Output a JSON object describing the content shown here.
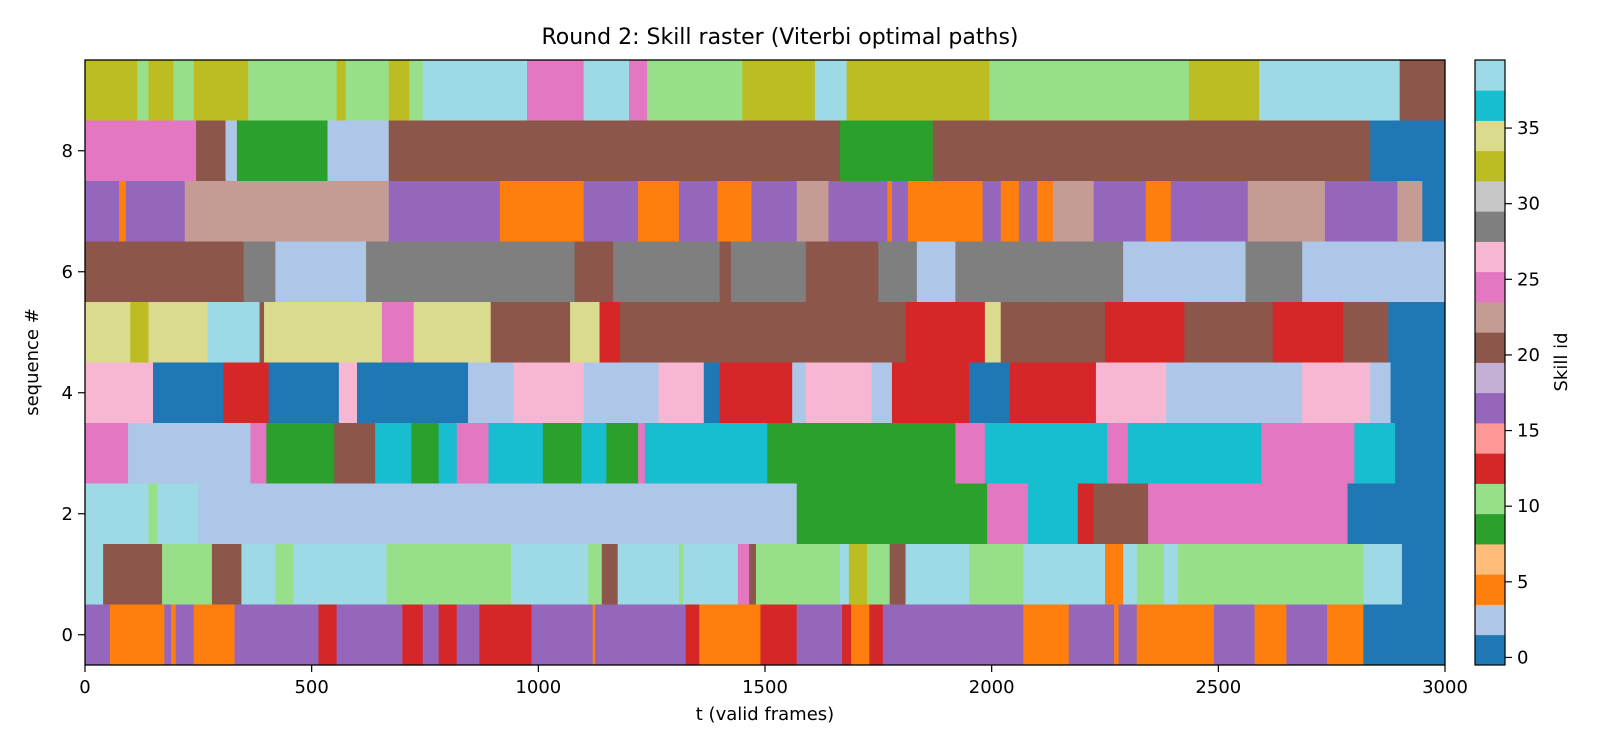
{
  "chart_data": {
    "type": "heatmap",
    "title": "Round 2: Skill raster (Viterbi optimal paths)",
    "xlabel": "t (valid frames)",
    "ylabel": "sequence #",
    "xlim": [
      0,
      3000
    ],
    "ylim": [
      -0.5,
      9.5
    ],
    "x_ticks": [
      0,
      500,
      1000,
      1500,
      2000,
      2500,
      3000
    ],
    "y_ticks": [
      0,
      2,
      4,
      6,
      8
    ],
    "grid": false,
    "colorbar": {
      "label": "Skill id",
      "range": [
        0,
        39
      ],
      "ticks": [
        0,
        5,
        10,
        15,
        20,
        25,
        30,
        35
      ],
      "palette": [
        "#1f77b4",
        "#aec7e8",
        "#ff7f0e",
        "#ffbb78",
        "#2ca02c",
        "#98df8a",
        "#d62728",
        "#ff9896",
        "#9467bd",
        "#c5b0d5",
        "#8c564b",
        "#c49c94",
        "#e377c2",
        "#f7b6d2",
        "#7f7f7f",
        "#c7c7c7",
        "#bcbd22",
        "#dbdb8d",
        "#17becf",
        "#9edae5"
      ]
    },
    "sequences": [
      {
        "row": 0,
        "segments": [
          [
            0,
            55,
            16
          ],
          [
            55,
            75,
            4
          ],
          [
            75,
            175,
            4
          ],
          [
            175,
            190,
            16
          ],
          [
            190,
            200,
            4
          ],
          [
            200,
            240,
            16
          ],
          [
            240,
            330,
            4
          ],
          [
            330,
            515,
            16
          ],
          [
            515,
            555,
            12
          ],
          [
            555,
            700,
            16
          ],
          [
            700,
            745,
            12
          ],
          [
            745,
            780,
            16
          ],
          [
            780,
            820,
            12
          ],
          [
            820,
            870,
            16
          ],
          [
            870,
            985,
            12
          ],
          [
            985,
            1120,
            16
          ],
          [
            1120,
            1125,
            4
          ],
          [
            1125,
            1325,
            16
          ],
          [
            1325,
            1355,
            12
          ],
          [
            1355,
            1490,
            4
          ],
          [
            1490,
            1570,
            12
          ],
          [
            1570,
            1670,
            16
          ],
          [
            1670,
            1690,
            12
          ],
          [
            1690,
            1730,
            4
          ],
          [
            1730,
            1760,
            12
          ],
          [
            1760,
            2070,
            16
          ],
          [
            2070,
            2170,
            4
          ],
          [
            2170,
            2270,
            16
          ],
          [
            2270,
            2280,
            4
          ],
          [
            2280,
            2320,
            16
          ],
          [
            2320,
            2490,
            4
          ],
          [
            2490,
            2580,
            16
          ],
          [
            2580,
            2650,
            4
          ],
          [
            2650,
            2740,
            16
          ],
          [
            2740,
            2820,
            4
          ],
          [
            2820,
            3000,
            0
          ]
        ]
      },
      {
        "row": 1,
        "segments": [
          [
            0,
            40,
            38
          ],
          [
            40,
            170,
            20
          ],
          [
            170,
            280,
            10
          ],
          [
            280,
            345,
            20
          ],
          [
            345,
            420,
            38
          ],
          [
            420,
            460,
            10
          ],
          [
            460,
            665,
            38
          ],
          [
            665,
            880,
            10
          ],
          [
            880,
            940,
            10
          ],
          [
            940,
            965,
            38
          ],
          [
            965,
            1110,
            38
          ],
          [
            1110,
            1140,
            10
          ],
          [
            1140,
            1175,
            20
          ],
          [
            1175,
            1310,
            38
          ],
          [
            1310,
            1320,
            10
          ],
          [
            1320,
            1440,
            38
          ],
          [
            1440,
            1465,
            24
          ],
          [
            1465,
            1480,
            20
          ],
          [
            1480,
            1665,
            10
          ],
          [
            1665,
            1685,
            38
          ],
          [
            1685,
            1725,
            32
          ],
          [
            1725,
            1775,
            10
          ],
          [
            1775,
            1810,
            20
          ],
          [
            1810,
            1950,
            38
          ],
          [
            1950,
            2070,
            10
          ],
          [
            2070,
            2250,
            38
          ],
          [
            2250,
            2290,
            4
          ],
          [
            2290,
            2320,
            38
          ],
          [
            2320,
            2380,
            10
          ],
          [
            2380,
            2410,
            38
          ],
          [
            2410,
            2820,
            10
          ],
          [
            2820,
            2905,
            38
          ],
          [
            2905,
            3000,
            0
          ]
        ]
      },
      {
        "row": 2,
        "segments": [
          [
            0,
            140,
            38
          ],
          [
            140,
            160,
            10
          ],
          [
            160,
            250,
            38
          ],
          [
            250,
            1570,
            2
          ],
          [
            1570,
            1990,
            8
          ],
          [
            1990,
            2080,
            24
          ],
          [
            2080,
            2190,
            36
          ],
          [
            2190,
            2225,
            12
          ],
          [
            2225,
            2345,
            20
          ],
          [
            2345,
            2785,
            24
          ],
          [
            2785,
            3000,
            0
          ]
        ]
      },
      {
        "row": 3,
        "segments": [
          [
            0,
            95,
            24
          ],
          [
            95,
            365,
            2
          ],
          [
            365,
            400,
            24
          ],
          [
            400,
            550,
            8
          ],
          [
            550,
            640,
            20
          ],
          [
            640,
            720,
            36
          ],
          [
            720,
            780,
            8
          ],
          [
            780,
            820,
            36
          ],
          [
            820,
            890,
            24
          ],
          [
            890,
            1010,
            36
          ],
          [
            1010,
            1095,
            8
          ],
          [
            1095,
            1150,
            36
          ],
          [
            1150,
            1220,
            8
          ],
          [
            1220,
            1235,
            24
          ],
          [
            1235,
            1505,
            36
          ],
          [
            1505,
            1655,
            8
          ],
          [
            1655,
            1815,
            8
          ],
          [
            1815,
            1920,
            8
          ],
          [
            1920,
            1985,
            24
          ],
          [
            1985,
            2255,
            36
          ],
          [
            2255,
            2300,
            24
          ],
          [
            2300,
            2595,
            36
          ],
          [
            2595,
            2800,
            24
          ],
          [
            2800,
            2890,
            36
          ],
          [
            2890,
            3000,
            0
          ]
        ]
      },
      {
        "row": 4,
        "segments": [
          [
            0,
            150,
            26
          ],
          [
            150,
            305,
            0
          ],
          [
            305,
            405,
            12
          ],
          [
            405,
            560,
            0
          ],
          [
            560,
            600,
            26
          ],
          [
            600,
            845,
            0
          ],
          [
            845,
            945,
            2
          ],
          [
            945,
            1100,
            26
          ],
          [
            1100,
            1265,
            2
          ],
          [
            1265,
            1365,
            26
          ],
          [
            1365,
            1400,
            0
          ],
          [
            1400,
            1560,
            12
          ],
          [
            1560,
            1590,
            2
          ],
          [
            1590,
            1735,
            26
          ],
          [
            1735,
            1780,
            2
          ],
          [
            1780,
            1950,
            12
          ],
          [
            1950,
            2040,
            0
          ],
          [
            2040,
            2155,
            12
          ],
          [
            2155,
            2230,
            12
          ],
          [
            2230,
            2385,
            26
          ],
          [
            2385,
            2685,
            2
          ],
          [
            2685,
            2835,
            26
          ],
          [
            2835,
            2880,
            2
          ],
          [
            2880,
            3000,
            0
          ]
        ]
      },
      {
        "row": 5,
        "segments": [
          [
            0,
            100,
            34
          ],
          [
            100,
            140,
            32
          ],
          [
            140,
            270,
            34
          ],
          [
            270,
            385,
            38
          ],
          [
            385,
            395,
            20
          ],
          [
            395,
            655,
            34
          ],
          [
            655,
            725,
            24
          ],
          [
            725,
            895,
            34
          ],
          [
            895,
            950,
            20
          ],
          [
            950,
            1070,
            20
          ],
          [
            1070,
            1135,
            34
          ],
          [
            1135,
            1180,
            12
          ],
          [
            1180,
            1810,
            20
          ],
          [
            1810,
            1890,
            12
          ],
          [
            1890,
            1985,
            12
          ],
          [
            1985,
            2020,
            34
          ],
          [
            2020,
            2250,
            20
          ],
          [
            2250,
            2425,
            12
          ],
          [
            2425,
            2620,
            20
          ],
          [
            2620,
            2775,
            12
          ],
          [
            2775,
            2875,
            20
          ],
          [
            2875,
            3000,
            0
          ]
        ]
      },
      {
        "row": 6,
        "segments": [
          [
            0,
            350,
            20
          ],
          [
            350,
            420,
            28
          ],
          [
            420,
            620,
            2
          ],
          [
            620,
            870,
            28
          ],
          [
            870,
            1080,
            28
          ],
          [
            1080,
            1165,
            20
          ],
          [
            1165,
            1400,
            28
          ],
          [
            1400,
            1425,
            20
          ],
          [
            1425,
            1590,
            28
          ],
          [
            1590,
            1750,
            20
          ],
          [
            1750,
            1835,
            28
          ],
          [
            1835,
            1920,
            2
          ],
          [
            1920,
            2125,
            28
          ],
          [
            2125,
            2290,
            28
          ],
          [
            2290,
            2470,
            2
          ],
          [
            2470,
            2560,
            2
          ],
          [
            2560,
            2685,
            28
          ],
          [
            2685,
            3000,
            2
          ]
        ]
      },
      {
        "row": 7,
        "segments": [
          [
            0,
            75,
            16
          ],
          [
            75,
            90,
            4
          ],
          [
            90,
            130,
            16
          ],
          [
            130,
            220,
            16
          ],
          [
            220,
            670,
            22
          ],
          [
            670,
            795,
            16
          ],
          [
            795,
            915,
            16
          ],
          [
            915,
            1030,
            4
          ],
          [
            1030,
            1100,
            4
          ],
          [
            1100,
            1220,
            16
          ],
          [
            1220,
            1310,
            4
          ],
          [
            1310,
            1395,
            16
          ],
          [
            1395,
            1470,
            4
          ],
          [
            1470,
            1570,
            16
          ],
          [
            1570,
            1640,
            22
          ],
          [
            1640,
            1770,
            16
          ],
          [
            1770,
            1780,
            4
          ],
          [
            1780,
            1815,
            16
          ],
          [
            1815,
            1980,
            4
          ],
          [
            1980,
            2020,
            16
          ],
          [
            2020,
            2060,
            4
          ],
          [
            2060,
            2100,
            16
          ],
          [
            2100,
            2135,
            4
          ],
          [
            2135,
            2225,
            22
          ],
          [
            2225,
            2340,
            16
          ],
          [
            2340,
            2395,
            4
          ],
          [
            2395,
            2430,
            16
          ],
          [
            2430,
            2565,
            16
          ],
          [
            2565,
            2735,
            22
          ],
          [
            2735,
            2895,
            16
          ],
          [
            2895,
            2950,
            22
          ],
          [
            2950,
            3000,
            0
          ]
        ]
      },
      {
        "row": 8,
        "segments": [
          [
            0,
            245,
            24
          ],
          [
            245,
            310,
            20
          ],
          [
            310,
            335,
            2
          ],
          [
            335,
            535,
            8
          ],
          [
            535,
            670,
            2
          ],
          [
            670,
            1665,
            20
          ],
          [
            1665,
            1870,
            8
          ],
          [
            1870,
            2835,
            20
          ],
          [
            2835,
            3000,
            0
          ]
        ]
      },
      {
        "row": 9,
        "segments": [
          [
            0,
            115,
            32
          ],
          [
            115,
            140,
            10
          ],
          [
            140,
            195,
            32
          ],
          [
            195,
            240,
            10
          ],
          [
            240,
            360,
            32
          ],
          [
            360,
            555,
            10
          ],
          [
            555,
            575,
            32
          ],
          [
            575,
            670,
            10
          ],
          [
            670,
            715,
            32
          ],
          [
            715,
            745,
            10
          ],
          [
            745,
            825,
            38
          ],
          [
            825,
            975,
            38
          ],
          [
            975,
            1100,
            24
          ],
          [
            1100,
            1200,
            38
          ],
          [
            1200,
            1240,
            24
          ],
          [
            1240,
            1450,
            10
          ],
          [
            1450,
            1610,
            32
          ],
          [
            1610,
            1680,
            38
          ],
          [
            1680,
            1860,
            32
          ],
          [
            1860,
            1995,
            32
          ],
          [
            1995,
            2435,
            10
          ],
          [
            2435,
            2570,
            32
          ],
          [
            2570,
            2590,
            32
          ],
          [
            2590,
            2700,
            38
          ],
          [
            2700,
            2800,
            38
          ],
          [
            2800,
            2900,
            38
          ],
          [
            2900,
            3000,
            20
          ]
        ]
      }
    ]
  }
}
